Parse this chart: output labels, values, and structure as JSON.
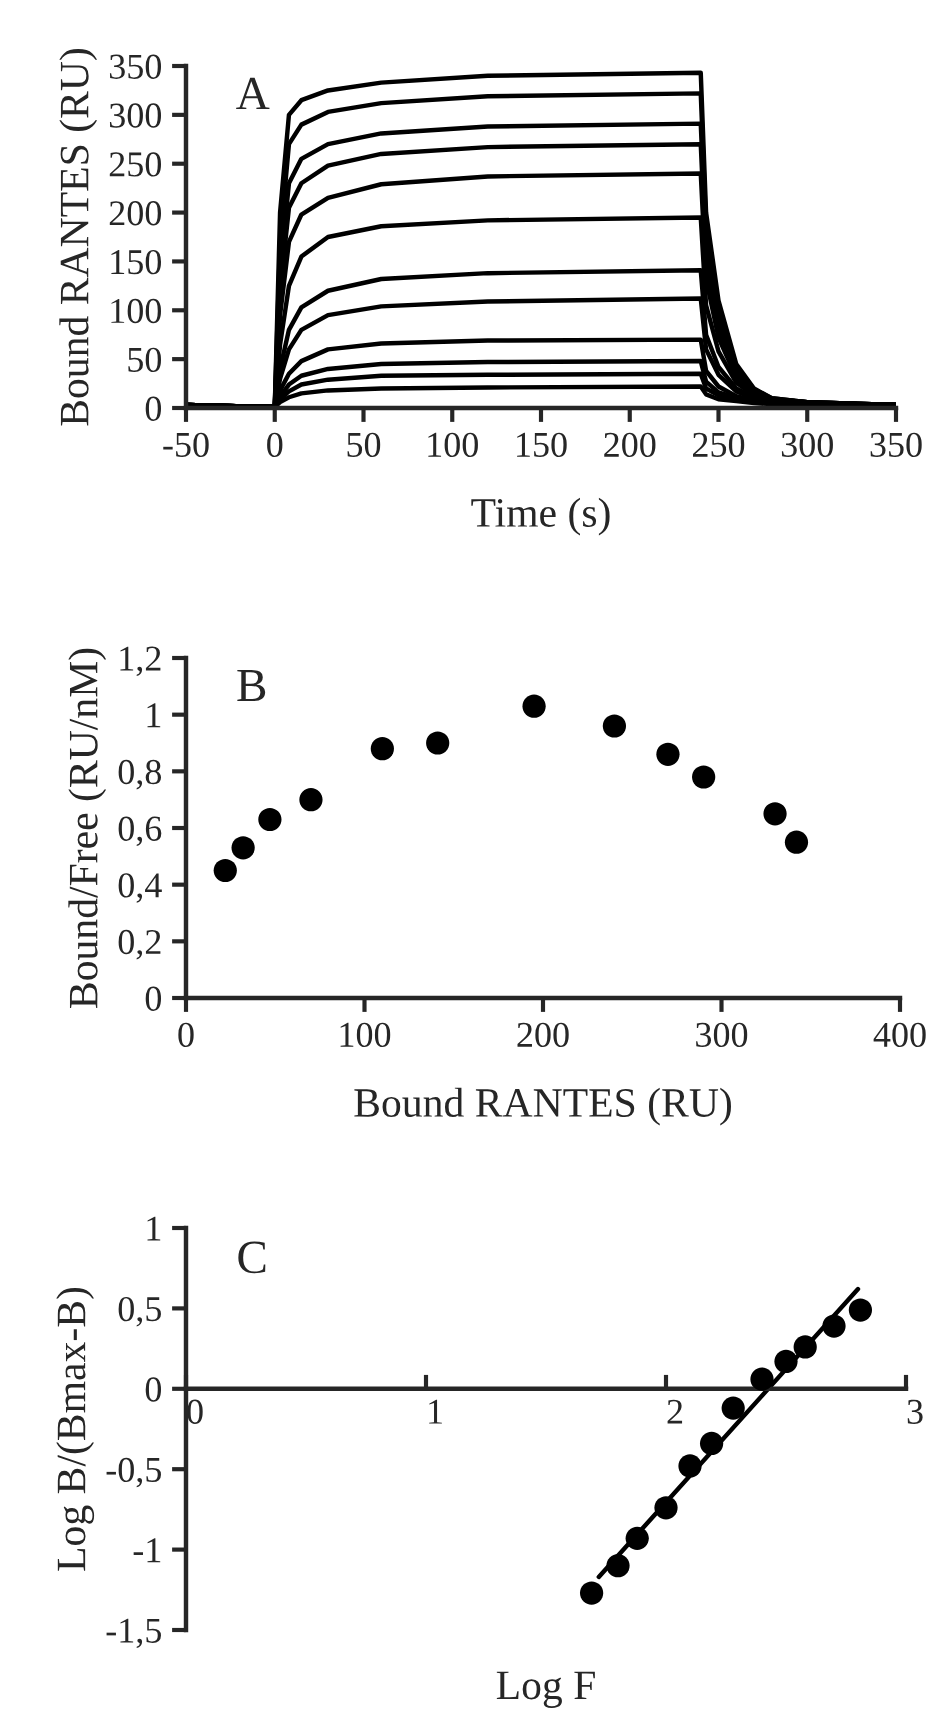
{
  "chart_data": [
    {
      "type": "line",
      "xlabel": "Time (s)",
      "ylabel": "Bound RANTES (RU)",
      "annotations": [
        "A"
      ],
      "line_style": "solid",
      "xlim": [
        -50,
        350
      ],
      "xticks": [
        -50,
        0,
        50,
        100,
        150,
        200,
        250,
        300,
        350
      ],
      "ylim": [
        0,
        350
      ],
      "yticks": [
        0,
        50,
        100,
        150,
        200,
        250,
        300,
        350
      ],
      "x": [
        -50,
        0,
        3,
        8,
        15,
        30,
        60,
        120,
        240,
        243,
        250,
        260,
        270,
        280,
        300,
        350
      ],
      "series": [
        {
          "color": "#000000",
          "values": [
            3,
            1,
            200,
            300,
            315,
            325,
            333,
            340,
            343,
            200,
            110,
            45,
            20,
            10,
            6,
            3
          ]
        },
        {
          "color": "#000000",
          "values": [
            3,
            1,
            170,
            270,
            290,
            303,
            312,
            319,
            322,
            185,
            100,
            42,
            19,
            10,
            6,
            3
          ]
        },
        {
          "color": "#000000",
          "values": [
            3,
            1,
            140,
            230,
            255,
            270,
            281,
            288,
            291,
            165,
            90,
            38,
            18,
            9,
            6,
            3
          ]
        },
        {
          "color": "#000000",
          "values": [
            3,
            1,
            120,
            205,
            230,
            248,
            260,
            267,
            270,
            150,
            82,
            35,
            17,
            9,
            6,
            3
          ]
        },
        {
          "color": "#000000",
          "values": [
            3,
            1,
            95,
            170,
            198,
            215,
            229,
            237,
            240,
            132,
            72,
            31,
            15,
            9,
            6,
            3
          ]
        },
        {
          "color": "#000000",
          "values": [
            3,
            1,
            65,
            125,
            155,
            175,
            186,
            192,
            195,
            105,
            58,
            26,
            13,
            8,
            5,
            3
          ]
        },
        {
          "color": "#000000",
          "values": [
            3,
            1,
            40,
            80,
            103,
            120,
            132,
            138,
            141,
            75,
            42,
            20,
            11,
            7,
            5,
            3
          ]
        },
        {
          "color": "#000000",
          "values": [
            3,
            1,
            30,
            60,
            80,
            95,
            104,
            109,
            112,
            60,
            34,
            17,
            10,
            7,
            5,
            3
          ]
        },
        {
          "color": "#000000",
          "values": [
            3,
            1,
            18,
            35,
            48,
            60,
            66,
            69,
            70,
            38,
            22,
            12,
            8,
            6,
            5,
            3
          ]
        },
        {
          "color": "#000000",
          "values": [
            3,
            1,
            12,
            24,
            33,
            40,
            45,
            47,
            48,
            27,
            16,
            10,
            7,
            5,
            4,
            3
          ]
        },
        {
          "color": "#000000",
          "values": [
            3,
            1,
            9,
            17,
            24,
            29,
            33,
            34,
            35,
            20,
            13,
            8,
            6,
            5,
            4,
            3
          ]
        },
        {
          "color": "#000000",
          "values": [
            3,
            1,
            6,
            11,
            15,
            18,
            20,
            21,
            22,
            14,
            9,
            7,
            5,
            4,
            4,
            3
          ]
        }
      ]
    },
    {
      "type": "scatter",
      "xlabel": "Bound RANTES (RU)",
      "ylabel": "Bound/Free (RU/nM)",
      "annotations": [
        "B"
      ],
      "xlim": [
        0,
        400
      ],
      "xticks": [
        0,
        100,
        200,
        300,
        400
      ],
      "ylim": [
        0,
        1.2
      ],
      "yticks": [
        0,
        {
          "value": 0.2,
          "label": "0,2"
        },
        {
          "value": 0.4,
          "label": "0,4"
        },
        {
          "value": 0.6,
          "label": "0,6"
        },
        {
          "value": 0.8,
          "label": "0,8"
        },
        1,
        {
          "value": 1.2,
          "label": "1,2"
        }
      ],
      "x": [
        22,
        32,
        47,
        70,
        110,
        141,
        195,
        240,
        270,
        290,
        330,
        342
      ],
      "series": [
        {
          "color": "#000000",
          "marker": "circle",
          "values": [
            0.45,
            0.53,
            0.63,
            0.7,
            0.88,
            0.9,
            1.03,
            0.96,
            0.86,
            0.78,
            0.65,
            0.55
          ]
        }
      ]
    },
    {
      "type": "scatter",
      "xlabel": "Log F",
      "ylabel": "Log B/(Bmax-B)",
      "annotations": [
        "C"
      ],
      "xlim": [
        0,
        3
      ],
      "xticks": [
        0,
        1,
        2,
        3
      ],
      "ylim": [
        -1.5,
        1
      ],
      "yticks": [
        {
          "value": -1.5,
          "label": "-1,5"
        },
        -1,
        {
          "value": -0.5,
          "label": "-0,5"
        },
        0,
        {
          "value": 0.5,
          "label": "0,5"
        },
        1
      ],
      "series": [
        {
          "color": "#000000",
          "marker": "circle",
          "x": [
            1.69,
            1.8,
            1.88,
            2.0,
            2.1,
            2.19,
            2.28,
            2.4,
            2.5,
            2.58,
            2.7,
            2.81
          ],
          "values": [
            -1.27,
            -1.1,
            -0.93,
            -0.74,
            -0.48,
            -0.34,
            -0.12,
            0.06,
            0.17,
            0.26,
            0.39,
            0.49
          ]
        },
        {
          "type": "line",
          "color": "#000000",
          "x": [
            1.72,
            2.8
          ],
          "values": [
            -1.17,
            0.62
          ]
        }
      ]
    }
  ]
}
